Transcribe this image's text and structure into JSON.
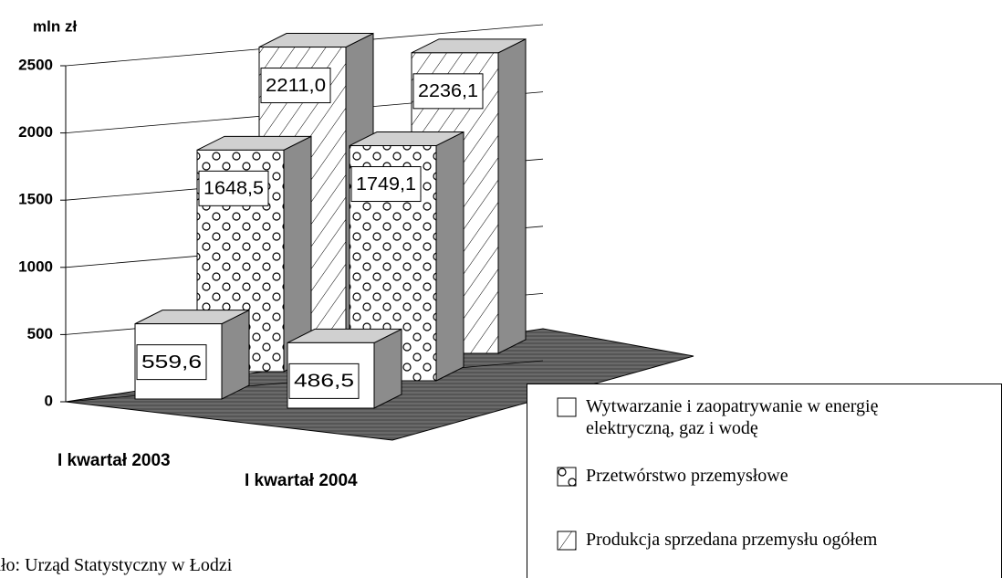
{
  "chart_data": {
    "type": "bar3d",
    "y_label": "mln zł",
    "categories": [
      "I kwartał 2003",
      "I kwartał 2004"
    ],
    "series": [
      {
        "name": "Wytwarzanie i zaopatrywanie w energię elektryczną, gaz i wodę",
        "color": "#ffffff",
        "pattern": "none",
        "values": [
          559.6,
          486.5
        ],
        "value_labels": [
          "559,6",
          "486,5"
        ]
      },
      {
        "name": "Przetwórstwo przemysłowe",
        "color": "#ffffff",
        "pattern": "circles",
        "values": [
          1648.5,
          1749.1
        ],
        "value_labels": [
          "1648,5",
          "1749,1"
        ]
      },
      {
        "name": "Produkcja sprzedana przemysłu ogółem",
        "color": "#ffffff",
        "pattern": "hatch",
        "values": [
          2211.0,
          2236.1
        ],
        "value_labels": [
          "2211,0",
          "2236,1"
        ]
      }
    ],
    "ylim": [
      0,
      2500
    ],
    "yticks": [
      0,
      500,
      1000,
      1500,
      2000,
      2500
    ],
    "grid": true,
    "source": "dło: Urząd Statystyczny w Łodzi"
  }
}
